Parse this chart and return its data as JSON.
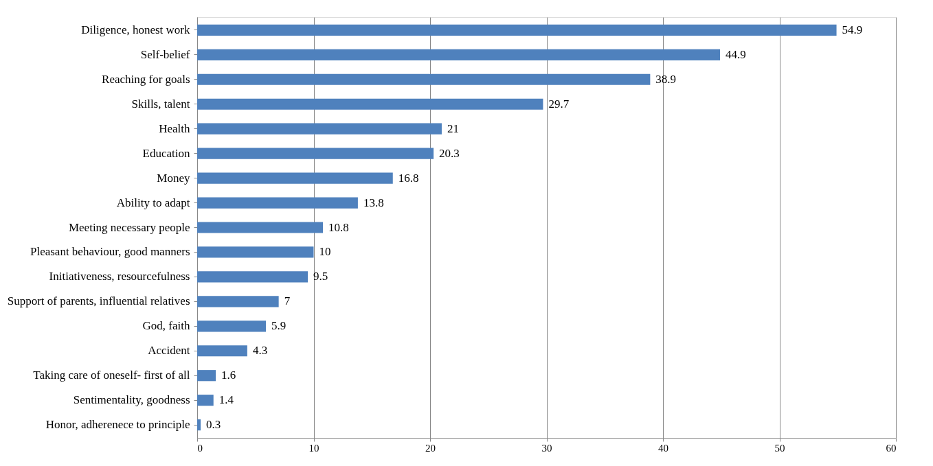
{
  "chart_data": {
    "type": "bar",
    "orientation": "horizontal",
    "categories": [
      "Diligence,  honest work",
      "Self-belief",
      "Reaching for goals",
      "Skills, talent",
      "Health",
      "Education",
      "Money",
      "Ability to adapt",
      "Meeting  necessary people",
      "Pleasant behaviour, good manners",
      "Initiativeness, resourcefulness",
      "Support of parents, influential relatives",
      "God, faith",
      "Accident",
      "Taking care of oneself- first of all",
      "Sentimentality, goodness",
      "Honor, adherenece to principle"
    ],
    "values": [
      54.9,
      44.9,
      38.9,
      29.7,
      21,
      20.3,
      16.8,
      13.8,
      10.8,
      10,
      9.5,
      7,
      5.9,
      4.3,
      1.6,
      1.4,
      0.3
    ],
    "color": "#4f81bd",
    "xlim": [
      0,
      60
    ],
    "xticks": [
      0,
      10,
      20,
      30,
      40,
      50,
      60
    ],
    "grid": "x",
    "data_labels": true
  }
}
